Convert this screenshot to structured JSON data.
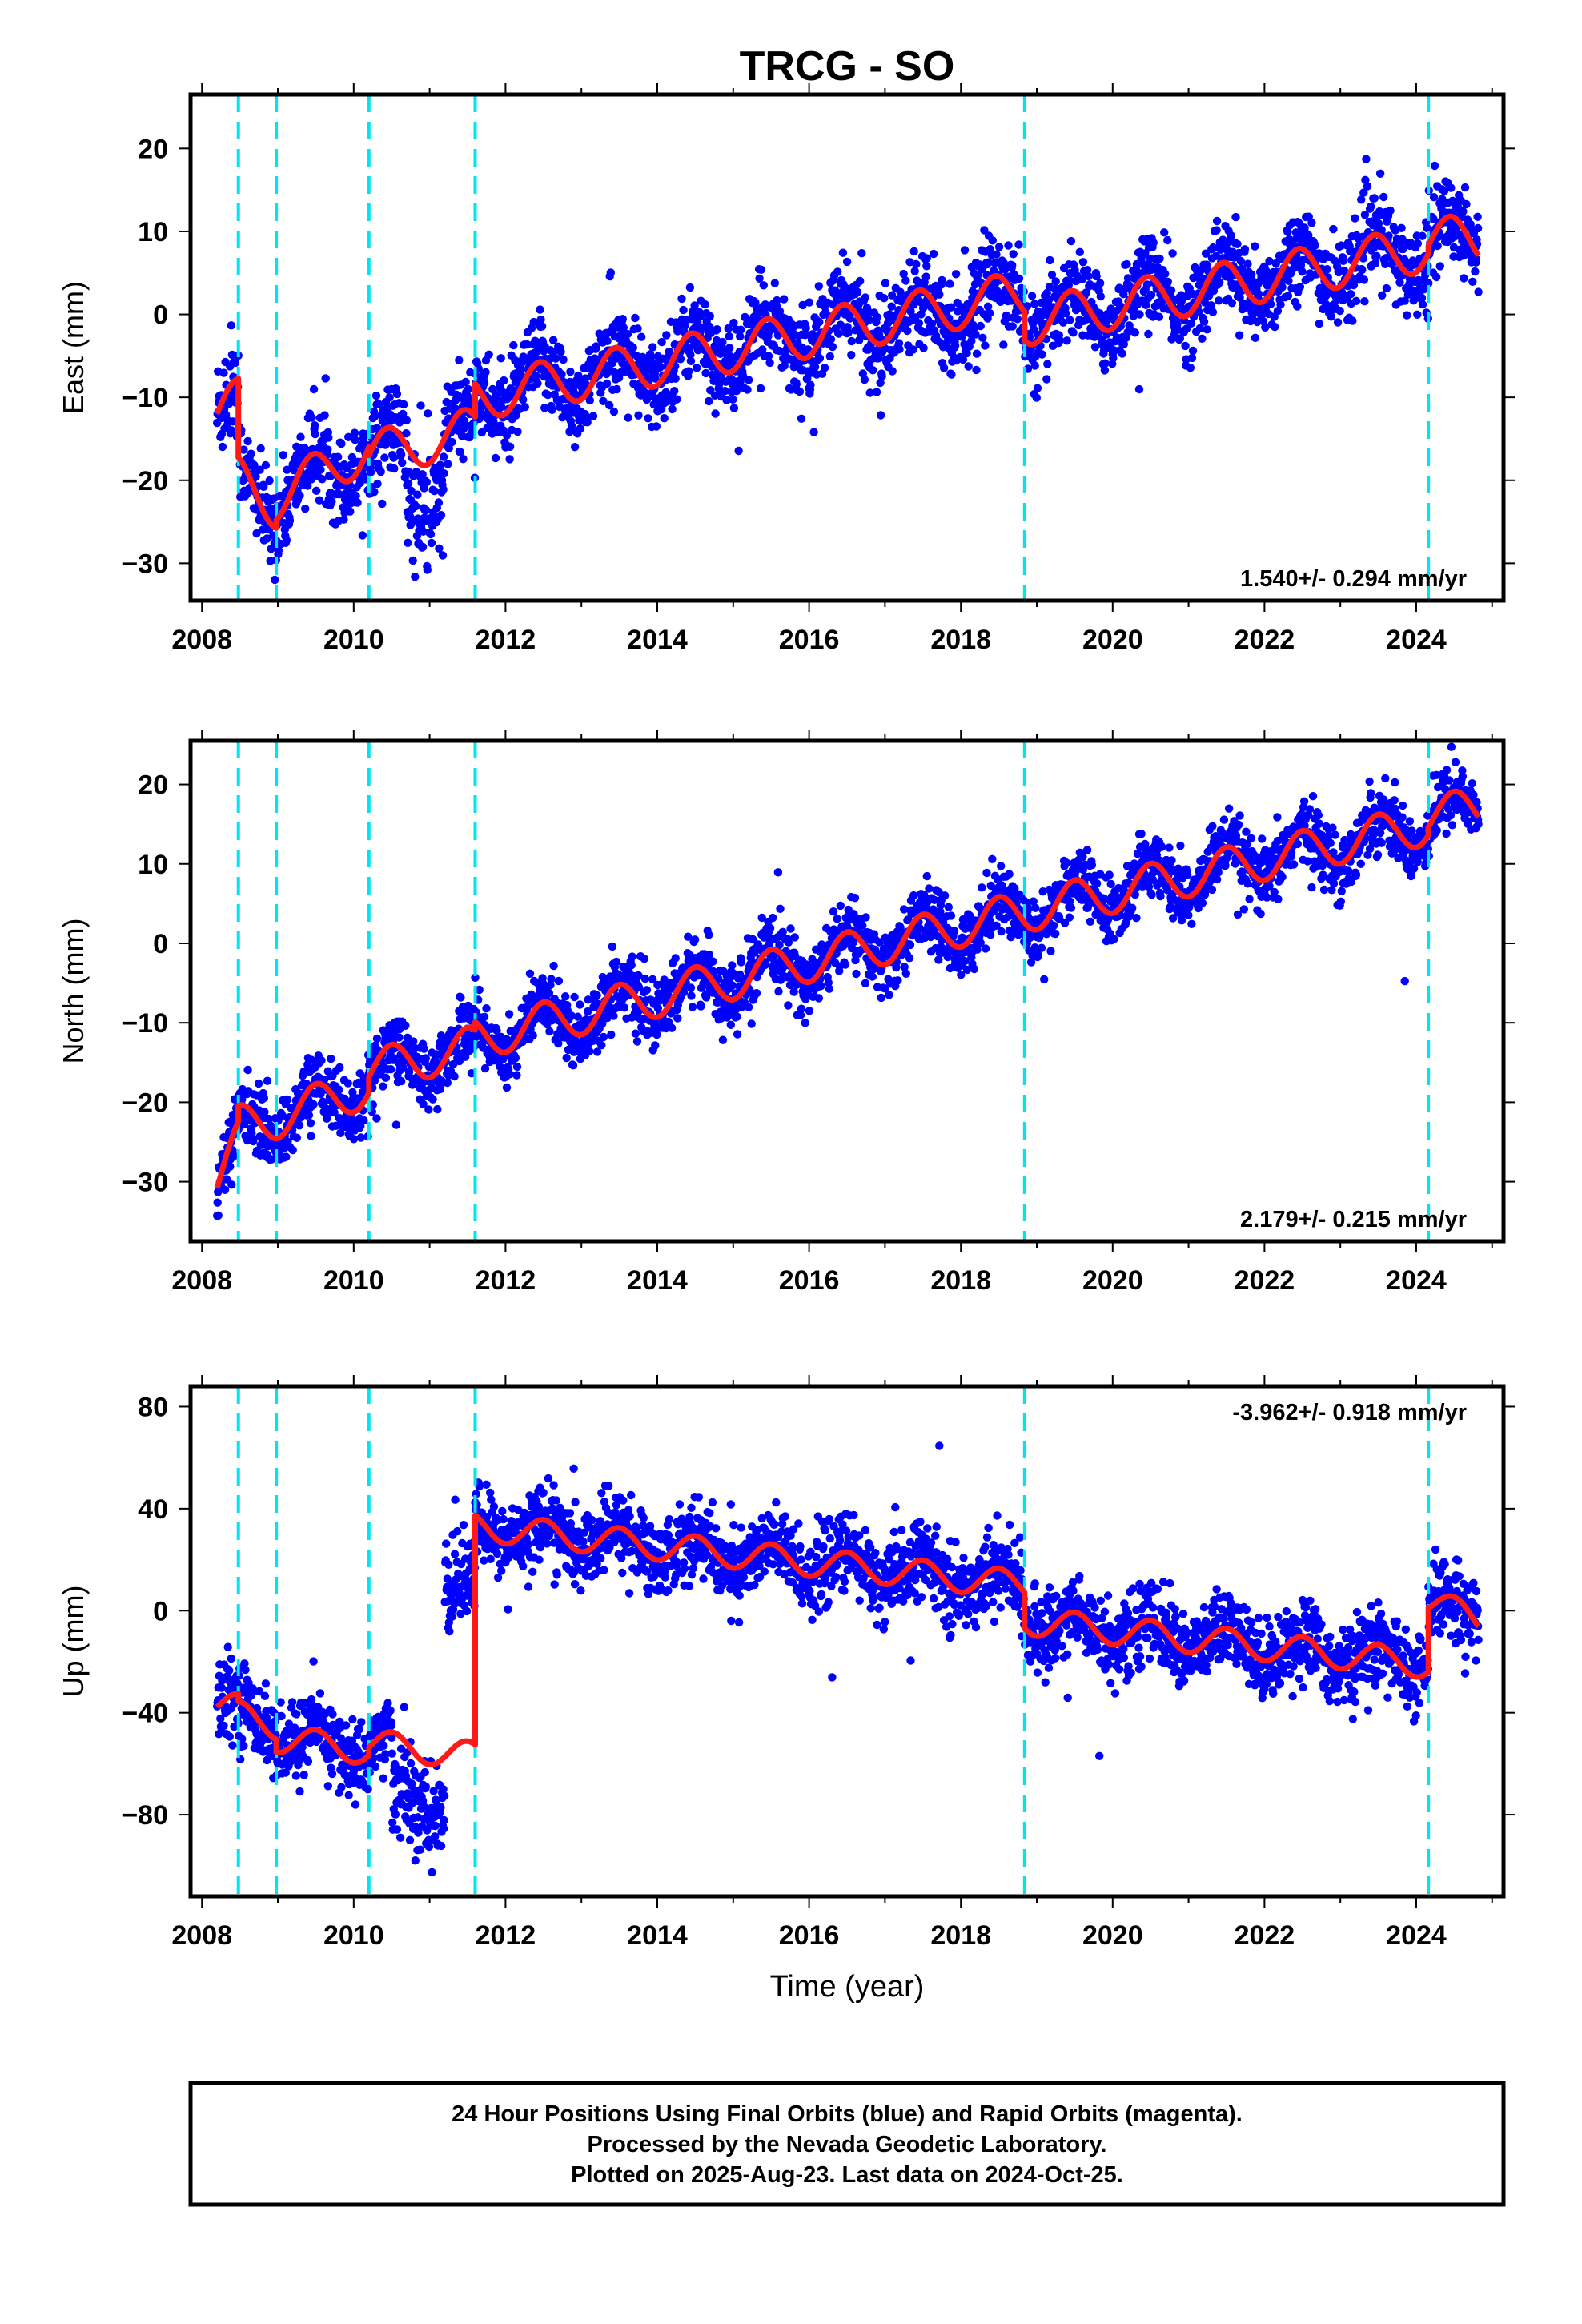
{
  "title": "TRCG - SO",
  "footer": {
    "lines": [
      "24 Hour Positions Using Final Orbits (blue) and Rapid Orbits (magenta).",
      "Processed by the Nevada Geodetic Laboratory.",
      "Plotted on 2025-Aug-23. Last data on 2024-Oct-25."
    ]
  },
  "colors": {
    "final_orbits": "#0000ff",
    "model_fit": "#ff1a1a",
    "equipment_breaks": "#00e5ee"
  },
  "chart_data": [
    {
      "type": "scatter",
      "ylabel": "East (mm)",
      "xlabel": "",
      "xlim": [
        2007.85,
        2025.15
      ],
      "ylim": [
        -34.5,
        26.5
      ],
      "x_ticks": [
        2008,
        2010,
        2012,
        2014,
        2016,
        2018,
        2020,
        2022,
        2024
      ],
      "y_ticks": [
        -30,
        -20,
        -10,
        0,
        10,
        20
      ],
      "rate_label": "1.540+/- 0.294 mm/yr",
      "rate_position": "bottom-right",
      "breaks": [
        2008.48,
        2008.98,
        2010.2,
        2011.6,
        2018.84,
        2024.16
      ],
      "data_span": [
        2008.2,
        2024.82
      ],
      "fit": {
        "segments": [
          {
            "x": [
              2008.2,
              2008.48
            ],
            "y": [
              -12,
              -10.5
            ]
          },
          {
            "x": [
              2008.48,
              2008.98
            ],
            "y": [
              -20,
              -23
            ]
          },
          {
            "x": [
              2008.98,
              2010.2
            ],
            "y": [
              -22,
              -16
            ]
          },
          {
            "x": [
              2010.2,
              2011.6
            ],
            "y": [
              -17,
              -14
            ]
          },
          {
            "x": [
              2011.6,
              2018.84
            ],
            "y": [
              -10,
              2.5
            ]
          },
          {
            "x": [
              2018.84,
              2024.16
            ],
            "y": [
              -1,
              8
            ]
          },
          {
            "x": [
              2024.16,
              2024.82
            ],
            "y": [
              9,
              9
            ]
          }
        ],
        "seasonal_amplitude": 2.8,
        "seasonal_peak": 0.45
      },
      "scatter": {
        "noise": 2.6,
        "anomalies": [
          {
            "x": [
              2010.7,
              2011.2
            ],
            "offset": -6,
            "noise": 4
          },
          {
            "x": [
              2008.2,
              2008.48
            ],
            "offset": 0,
            "noise": 3.5
          }
        ]
      }
    },
    {
      "type": "scatter",
      "ylabel": "North (mm)",
      "xlabel": "",
      "xlim": [
        2007.85,
        2025.15
      ],
      "ylim": [
        -37.5,
        25.5
      ],
      "x_ticks": [
        2008,
        2010,
        2012,
        2014,
        2016,
        2018,
        2020,
        2022,
        2024
      ],
      "y_ticks": [
        -30,
        -20,
        -10,
        0,
        10,
        20
      ],
      "rate_label": "2.179+/- 0.215 mm/yr",
      "rate_position": "bottom-right",
      "breaks": [
        2008.48,
        2008.98,
        2010.2,
        2011.6,
        2018.84,
        2024.16
      ],
      "data_span": [
        2008.2,
        2024.82
      ],
      "fit": {
        "segments": [
          {
            "x": [
              2008.2,
              2008.48
            ],
            "y": [
              -30,
              -25
            ]
          },
          {
            "x": [
              2008.48,
              2008.98
            ],
            "y": [
              -23,
              -22
            ]
          },
          {
            "x": [
              2008.98,
              2010.2
            ],
            "y": [
              -22,
              -18
            ]
          },
          {
            "x": [
              2010.2,
              2011.6
            ],
            "y": [
              -16,
              -13
            ]
          },
          {
            "x": [
              2011.6,
              2018.84
            ],
            "y": [
              -12,
              4
            ]
          },
          {
            "x": [
              2018.84,
              2024.16
            ],
            "y": [
              4,
              15
            ]
          },
          {
            "x": [
              2024.16,
              2024.82
            ],
            "y": [
              16,
              17
            ]
          }
        ],
        "seasonal_amplitude": 2.6,
        "seasonal_peak": 0.5
      },
      "scatter": {
        "noise": 2.0,
        "anomalies": []
      }
    },
    {
      "type": "scatter",
      "ylabel": "Up (mm)",
      "xlabel": "Time (year)",
      "xlim": [
        2007.85,
        2025.15
      ],
      "ylim": [
        -112,
        88
      ],
      "x_ticks": [
        2008,
        2010,
        2012,
        2014,
        2016,
        2018,
        2020,
        2022,
        2024
      ],
      "y_ticks": [
        -80,
        -40,
        0,
        40,
        80
      ],
      "rate_label": "-3.962+/- 0.918 mm/yr",
      "rate_position": "top-right",
      "breaks": [
        2008.48,
        2008.98,
        2010.2,
        2011.6,
        2018.84,
        2024.16
      ],
      "data_span": [
        2008.2,
        2024.82
      ],
      "fit": {
        "segments": [
          {
            "x": [
              2008.2,
              2008.48
            ],
            "y": [
              -36,
              -38
            ]
          },
          {
            "x": [
              2008.48,
              2008.98
            ],
            "y": [
              -41,
              -45
            ]
          },
          {
            "x": [
              2008.98,
              2010.2
            ],
            "y": [
              -50,
              -55
            ]
          },
          {
            "x": [
              2010.2,
              2011.6
            ],
            "y": [
              -52,
              -57
            ]
          },
          {
            "x": [
              2011.6,
              2018.84
            ],
            "y": [
              33,
              10
            ]
          },
          {
            "x": [
              2018.84,
              2024.16
            ],
            "y": [
              -4,
              -21
            ]
          },
          {
            "x": [
              2024.16,
              2024.82
            ],
            "y": [
              4,
              -4
            ]
          }
        ],
        "seasonal_amplitude": 5.5,
        "seasonal_peak": 0.5
      },
      "scatter": {
        "noise": 7.5,
        "anomalies": [
          {
            "x": [
              2011.2,
              2011.6
            ],
            "offset": 64,
            "noise": 9
          },
          {
            "x": [
              2010.5,
              2011.2
            ],
            "offset": -20,
            "noise": 9
          }
        ]
      }
    }
  ]
}
